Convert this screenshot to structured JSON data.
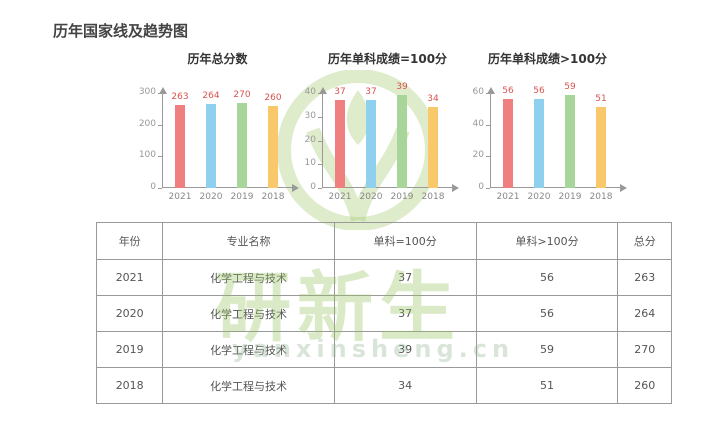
{
  "page_title": "历年国家线及趋势图",
  "colors": {
    "2021": "#f08080",
    "2020": "#8fd0ee",
    "2019": "#a8d69a",
    "2018": "#f9c86a",
    "label": "#d9534f"
  },
  "chart_data": [
    {
      "type": "bar",
      "title": "历年总分数",
      "categories": [
        "2021",
        "2020",
        "2019",
        "2018"
      ],
      "values": [
        263,
        264,
        270,
        260
      ],
      "yticks": [
        0,
        100,
        200,
        300
      ],
      "ylim": [
        0,
        300
      ]
    },
    {
      "type": "bar",
      "title": "历年单科成绩=100分",
      "categories": [
        "2021",
        "2020",
        "2019",
        "2018"
      ],
      "values": [
        37,
        37,
        39,
        34
      ],
      "yticks": [
        0,
        10,
        20,
        30,
        40
      ],
      "ylim": [
        0,
        40
      ]
    },
    {
      "type": "bar",
      "title": "历年单科成绩>100分",
      "categories": [
        "2021",
        "2020",
        "2019",
        "2018"
      ],
      "values": [
        56,
        56,
        59,
        51
      ],
      "yticks": [
        0,
        20,
        40,
        60
      ],
      "ylim": [
        0,
        60
      ]
    }
  ],
  "table": {
    "headers": [
      "年份",
      "专业名称",
      "单科=100分",
      "单科>100分",
      "总分"
    ],
    "rows": [
      [
        "2021",
        "化学工程与技术",
        "37",
        "56",
        "263"
      ],
      [
        "2020",
        "化学工程与技术",
        "37",
        "56",
        "264"
      ],
      [
        "2019",
        "化学工程与技术",
        "39",
        "59",
        "270"
      ],
      [
        "2018",
        "化学工程与技术",
        "34",
        "51",
        "260"
      ]
    ]
  },
  "watermark": {
    "text": "研新生",
    "url": "yanxinsheng.cn"
  }
}
